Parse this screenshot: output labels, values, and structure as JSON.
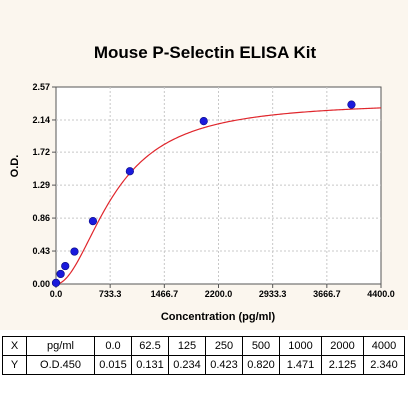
{
  "chart_data": {
    "type": "scatter",
    "title": "Mouse P-Selectin ELISA Kit",
    "xlabel": "Concentration (pg/ml)",
    "ylabel": "O.D.",
    "xlim": [
      0,
      4400
    ],
    "ylim": [
      0,
      2.57
    ],
    "x_ticks": [
      "0.0",
      "733.3",
      "1466.7",
      "2200.0",
      "2933.3",
      "3666.7",
      "4400.0"
    ],
    "y_ticks": [
      "0.00",
      "0.43",
      "0.86",
      "1.29",
      "1.72",
      "2.14",
      "2.57"
    ],
    "points": [
      {
        "x": 0,
        "y": 0.015
      },
      {
        "x": 62.5,
        "y": 0.131
      },
      {
        "x": 125,
        "y": 0.234
      },
      {
        "x": 250,
        "y": 0.423
      },
      {
        "x": 500,
        "y": 0.82
      },
      {
        "x": 1000,
        "y": 1.471
      },
      {
        "x": 2000,
        "y": 2.125
      },
      {
        "x": 4000,
        "y": 2.34
      }
    ],
    "fit_curve": "4-parameter logistic",
    "colors": {
      "points": "#1a1adc",
      "curve": "#e0262c",
      "background": "#fbf6ee"
    },
    "grid": true
  },
  "table": {
    "rows": [
      [
        "X",
        "pg/ml",
        "0.0",
        "62.5",
        "125",
        "250",
        "500",
        "1000",
        "2000",
        "4000"
      ],
      [
        "Y",
        "O.D.450",
        "0.015",
        "0.131",
        "0.234",
        "0.423",
        "0.820",
        "1.471",
        "2.125",
        "2.340"
      ]
    ]
  }
}
